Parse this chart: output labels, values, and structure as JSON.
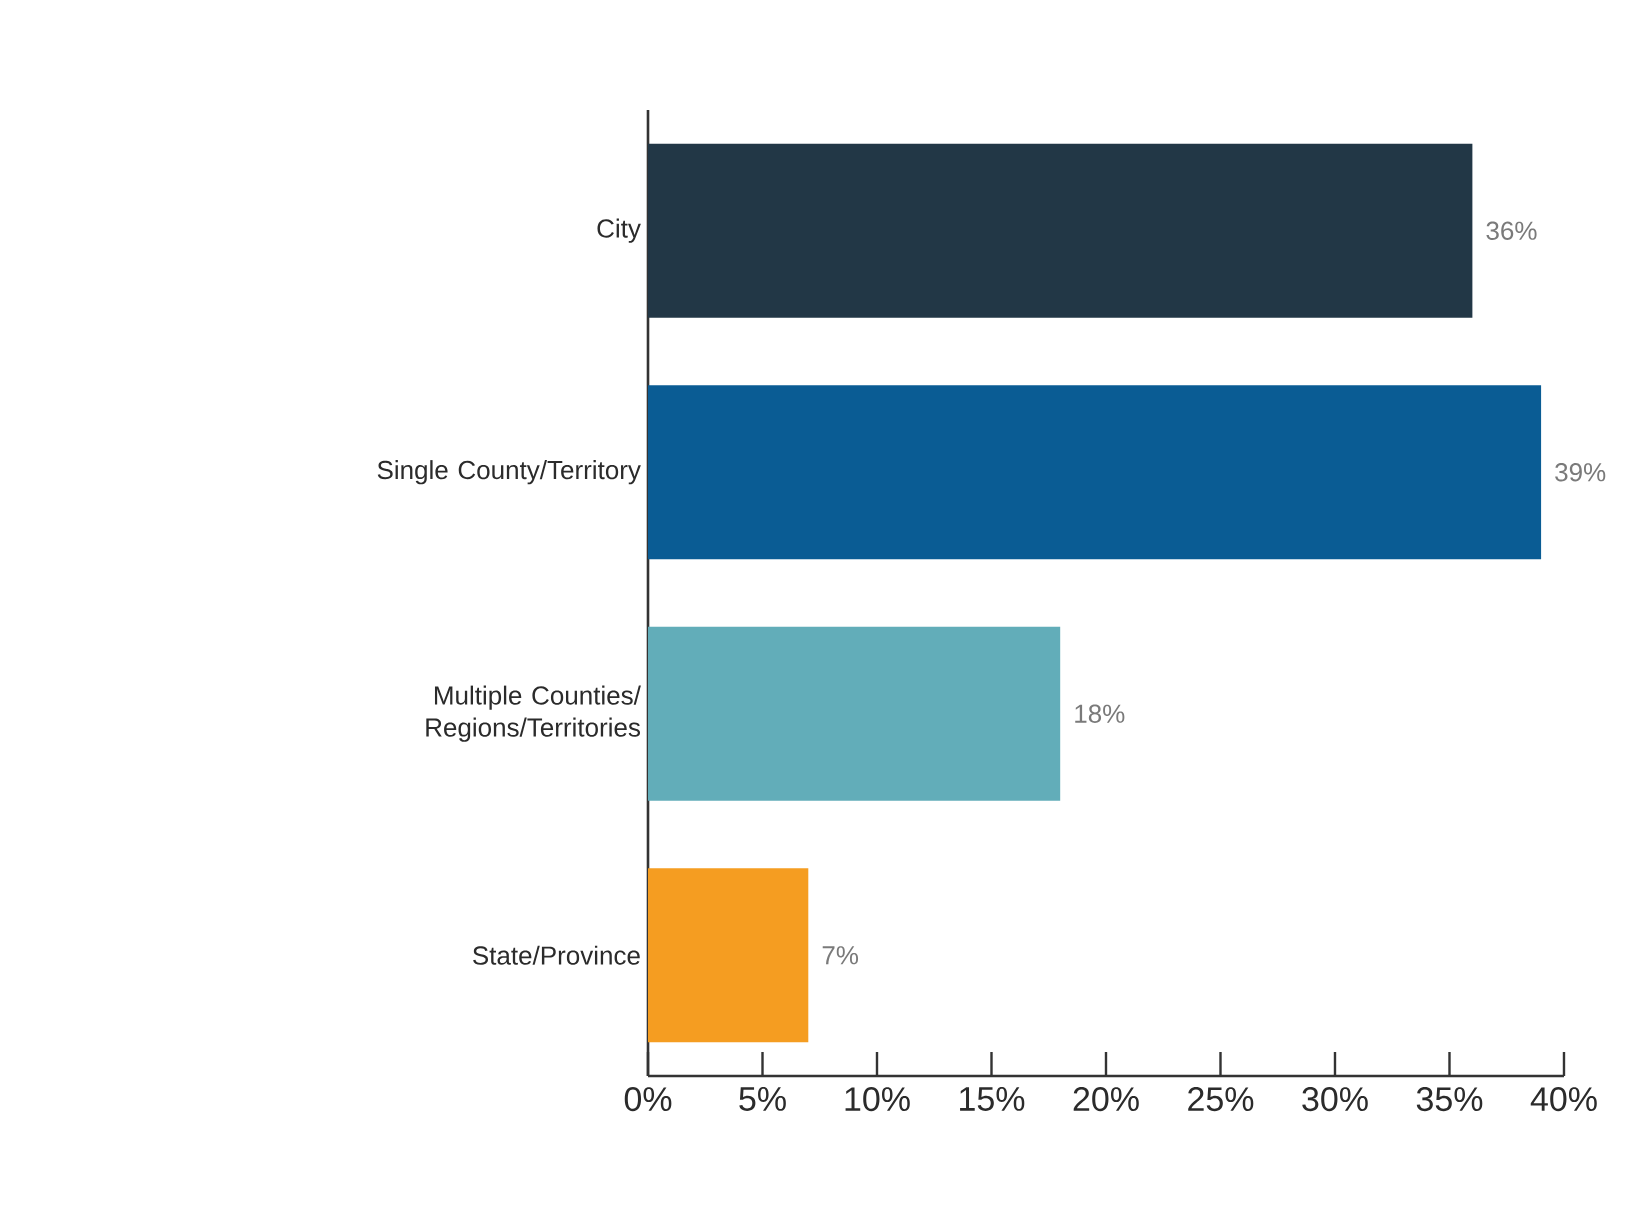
{
  "chart_data": {
    "type": "bar",
    "orientation": "horizontal",
    "categories": [
      "City",
      "Single County/Territory",
      "Multiple Counties/ Regions/Territories",
      "State/Province"
    ],
    "values": [
      36,
      39,
      18,
      7
    ],
    "colors": [
      "#223746",
      "#0a5c94",
      "#62adb9",
      "#f59d21"
    ],
    "value_labels": [
      "36%",
      "39%",
      "18%",
      "7%"
    ],
    "xlim": [
      0,
      40
    ],
    "xticks": [
      {
        "value": 0,
        "label": "0%"
      },
      {
        "value": 5,
        "label": "5%"
      },
      {
        "value": 10,
        "label": "10%"
      },
      {
        "value": 15,
        "label": "15%"
      },
      {
        "value": 20,
        "label": "20%"
      },
      {
        "value": 25,
        "label": "25%"
      },
      {
        "value": 30,
        "label": "30%"
      },
      {
        "value": 35,
        "label": "35%"
      },
      {
        "value": 40,
        "label": "40%"
      }
    ]
  }
}
